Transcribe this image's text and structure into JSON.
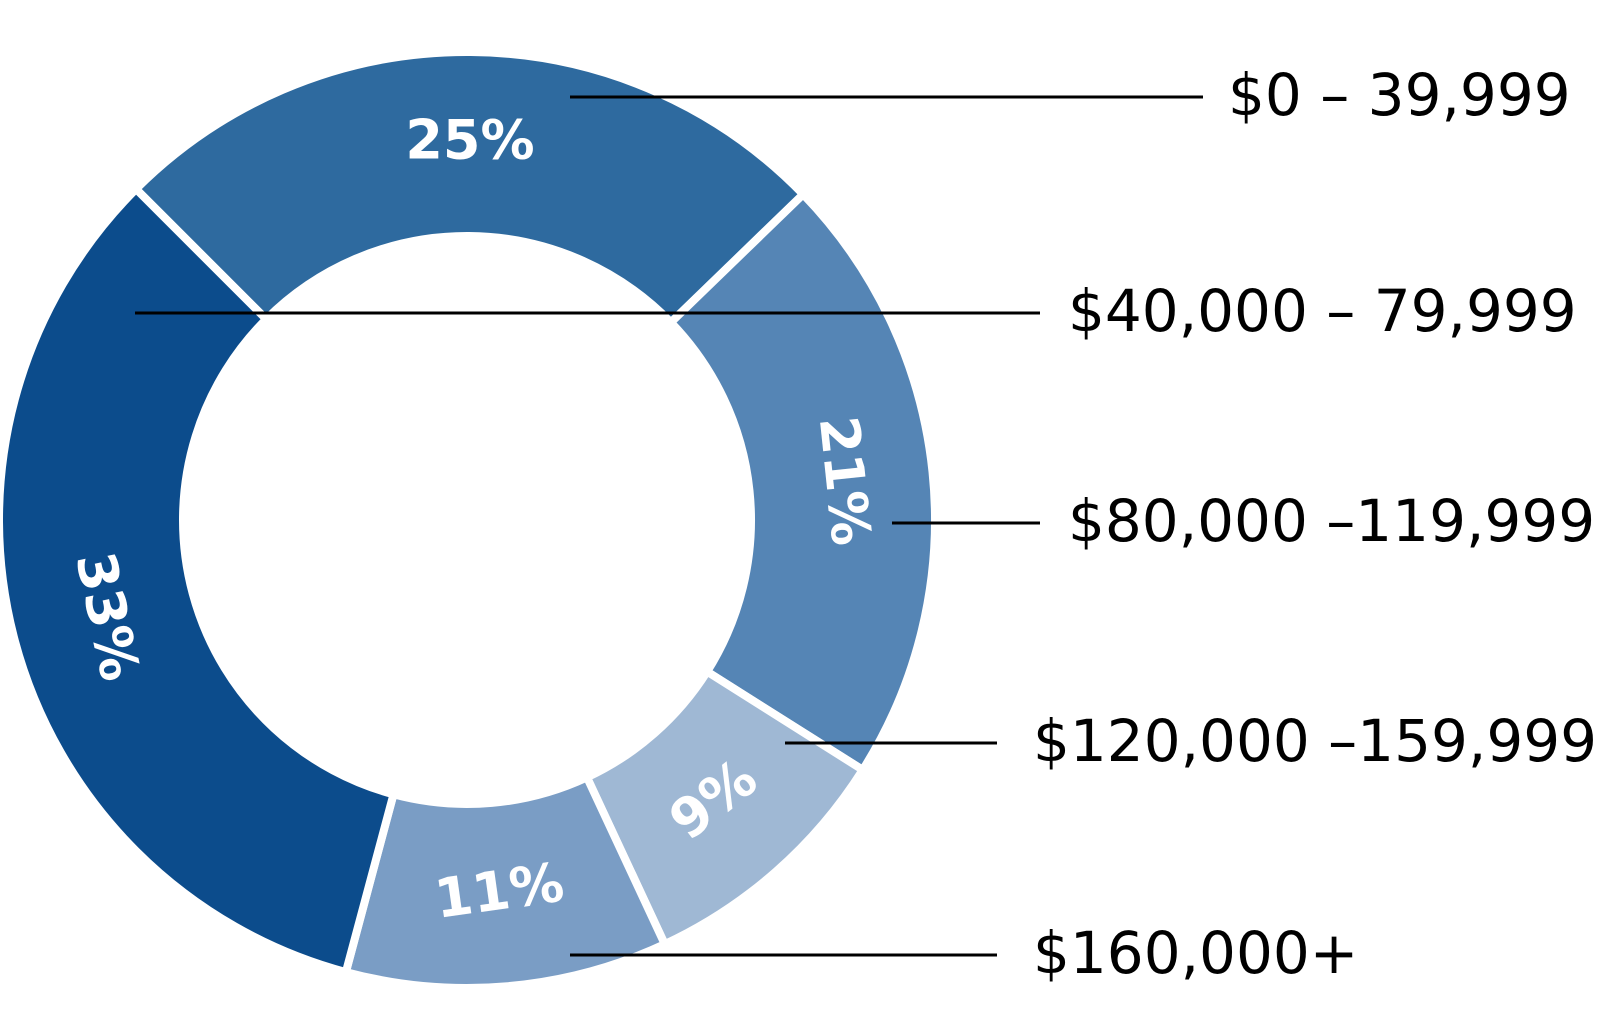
{
  "chart_data": {
    "type": "donut",
    "categories": [
      "$0 –  39,999",
      "$40,000 –  79,999",
      "$80,000 –119,999",
      "$120,000 –159,999",
      "$160,000+"
    ],
    "values": [
      25,
      33,
      21,
      9,
      11
    ],
    "value_labels": [
      "25%",
      "33%",
      "21%",
      "9%",
      "11%"
    ],
    "colors": [
      "#2e6a9f",
      "#0c4c8c",
      "#5585b5",
      "#9fb8d4",
      "#7a9dc5"
    ]
  }
}
